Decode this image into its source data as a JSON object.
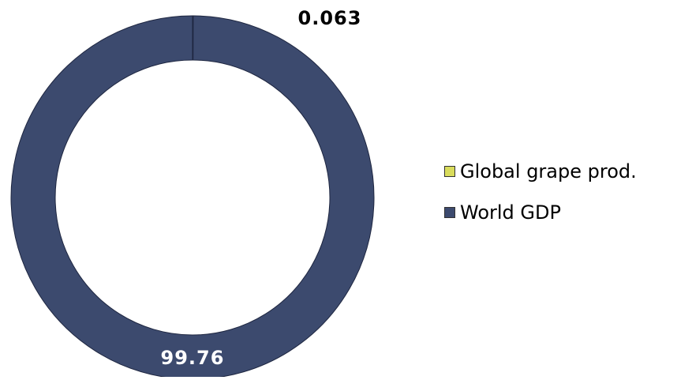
{
  "chart_data": {
    "type": "pie",
    "variant": "donut",
    "categories": [
      "Global grape prod.",
      "World GDP"
    ],
    "values": [
      0.063,
      99.76
    ],
    "data_labels": [
      "0.063",
      "99.76"
    ],
    "colors": [
      "#d9dc5c",
      "#3c4a6e"
    ],
    "legend_position": "right",
    "title": "",
    "start_angle": "top, clockwise"
  }
}
